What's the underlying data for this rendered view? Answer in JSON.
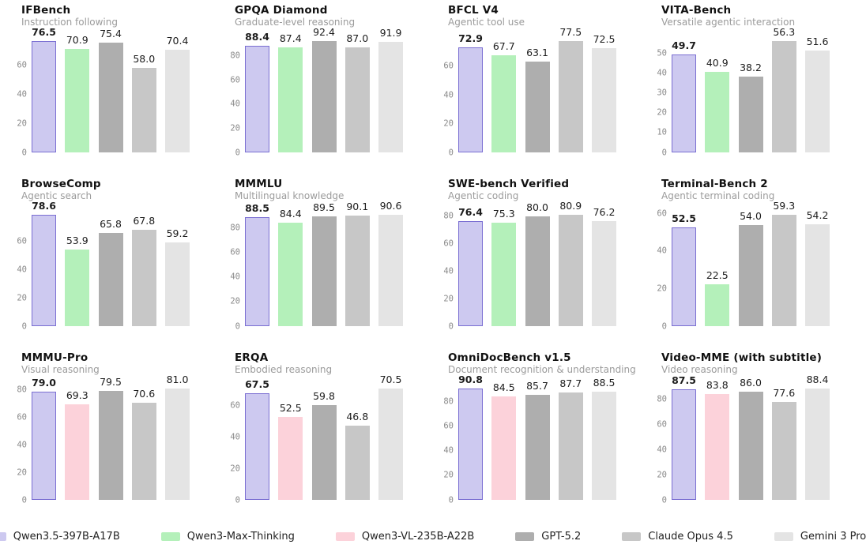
{
  "page": {
    "background": "#ffffff"
  },
  "palette": {
    "lavender": {
      "fill": "#cdc9f0",
      "border": "#7a6ed2"
    },
    "green": {
      "fill": "#b4f0ba",
      "border": ""
    },
    "pink": {
      "fill": "#fcd2da",
      "border": ""
    },
    "gray-dark": {
      "fill": "#aeaeae",
      "border": ""
    },
    "gray-mid": {
      "fill": "#c7c7c7",
      "border": ""
    },
    "gray-light": {
      "fill": "#e4e4e4",
      "border": ""
    }
  },
  "legend": {
    "items": [
      {
        "label": "Qwen3.5-397B-A17B",
        "color_key": "lavender"
      },
      {
        "label": "Qwen3-Max-Thinking",
        "color_key": "green"
      },
      {
        "label": "Qwen3-VL-235B-A22B",
        "color_key": "pink"
      },
      {
        "label": "GPT-5.2",
        "color_key": "gray-dark"
      },
      {
        "label": "Claude Opus 4.5",
        "color_key": "gray-mid"
      },
      {
        "label": "Gemini 3 Pro",
        "color_key": "gray-light"
      }
    ]
  },
  "chart_data": [
    {
      "type": "bar",
      "title": "IFBench",
      "subtitle": "Instruction following",
      "series": [
        "Qwen3.5-397B-A17B",
        "Qwen3-Max-Thinking",
        "GPT-5.2",
        "Claude Opus 4.5",
        "Gemini 3 Pro"
      ],
      "values": [
        76.5,
        70.9,
        75.4,
        58.0,
        70.4
      ],
      "labels": [
        "76.5",
        "70.9",
        "75.4",
        "58.0",
        "70.4"
      ],
      "yticks": [
        0,
        20,
        40,
        60
      ],
      "ylim": [
        0,
        80.3
      ],
      "colors": [
        "lavender",
        "green",
        "gray-dark",
        "gray-mid",
        "gray-light"
      ],
      "highlight_index": 0
    },
    {
      "type": "bar",
      "title": "GPQA Diamond",
      "subtitle": "Graduate-level reasoning",
      "series": [
        "Qwen3.5-397B-A17B",
        "Qwen3-Max-Thinking",
        "GPT-5.2",
        "Claude Opus 4.5",
        "Gemini 3 Pro"
      ],
      "values": [
        88.4,
        87.4,
        92.4,
        87.0,
        91.9
      ],
      "labels": [
        "88.4",
        "87.4",
        "92.4",
        "87.0",
        "91.9"
      ],
      "yticks": [
        0,
        20,
        40,
        60,
        80
      ],
      "ylim": [
        0,
        97.0
      ],
      "colors": [
        "lavender",
        "green",
        "gray-dark",
        "gray-mid",
        "gray-light"
      ],
      "highlight_index": 0
    },
    {
      "type": "bar",
      "title": "BFCL V4",
      "subtitle": "Agentic tool use",
      "series": [
        "Qwen3.5-397B-A17B",
        "Qwen3-Max-Thinking",
        "GPT-5.2",
        "Claude Opus 4.5",
        "Gemini 3 Pro"
      ],
      "values": [
        72.9,
        67.7,
        63.1,
        77.5,
        72.5
      ],
      "labels": [
        "72.9",
        "67.7",
        "63.1",
        "77.5",
        "72.5"
      ],
      "yticks": [
        0,
        20,
        40,
        60
      ],
      "ylim": [
        0,
        81.4
      ],
      "colors": [
        "lavender",
        "green",
        "gray-dark",
        "gray-mid",
        "gray-light"
      ],
      "highlight_index": 0
    },
    {
      "type": "bar",
      "title": "VITA-Bench",
      "subtitle": "Versatile agentic interaction",
      "series": [
        "Qwen3.5-397B-A17B",
        "Qwen3-Max-Thinking",
        "GPT-5.2",
        "Claude Opus 4.5",
        "Gemini 3 Pro"
      ],
      "values": [
        49.7,
        40.9,
        38.2,
        56.3,
        51.6
      ],
      "labels": [
        "49.7",
        "40.9",
        "38.2",
        "56.3",
        "51.6"
      ],
      "yticks": [
        0,
        10,
        20,
        30,
        40,
        50
      ],
      "ylim": [
        0,
        59.1
      ],
      "colors": [
        "lavender",
        "green",
        "gray-dark",
        "gray-mid",
        "gray-light"
      ],
      "highlight_index": 0
    },
    {
      "type": "bar",
      "title": "BrowseComp",
      "subtitle": "Agentic search",
      "series": [
        "Qwen3.5-397B-A17B",
        "Qwen3-Max-Thinking",
        "GPT-5.2",
        "Claude Opus 4.5",
        "Gemini 3 Pro"
      ],
      "values": [
        78.6,
        53.9,
        65.8,
        67.8,
        59.2
      ],
      "labels": [
        "78.6",
        "53.9",
        "65.8",
        "67.8",
        "59.2"
      ],
      "yticks": [
        0,
        20,
        40,
        60
      ],
      "ylim": [
        0,
        82.5
      ],
      "colors": [
        "lavender",
        "green",
        "gray-dark",
        "gray-mid",
        "gray-light"
      ],
      "highlight_index": 0
    },
    {
      "type": "bar",
      "title": "MMMLU",
      "subtitle": "Multilingual knowledge",
      "series": [
        "Qwen3.5-397B-A17B",
        "Qwen3-Max-Thinking",
        "GPT-5.2",
        "Claude Opus 4.5",
        "Gemini 3 Pro"
      ],
      "values": [
        88.5,
        84.4,
        89.5,
        90.1,
        90.6
      ],
      "labels": [
        "88.5",
        "84.4",
        "89.5",
        "90.1",
        "90.6"
      ],
      "yticks": [
        0,
        20,
        40,
        60,
        80
      ],
      "ylim": [
        0,
        95.1
      ],
      "colors": [
        "lavender",
        "green",
        "gray-dark",
        "gray-mid",
        "gray-light"
      ],
      "highlight_index": 0
    },
    {
      "type": "bar",
      "title": "SWE-bench Verified",
      "subtitle": "Agentic coding",
      "series": [
        "Qwen3.5-397B-A17B",
        "Qwen3-Max-Thinking",
        "GPT-5.2",
        "Claude Opus 4.5",
        "Gemini 3 Pro"
      ],
      "values": [
        76.4,
        75.3,
        80.0,
        80.9,
        76.2
      ],
      "labels": [
        "76.4",
        "75.3",
        "80.0",
        "80.9",
        "76.2"
      ],
      "yticks": [
        0,
        20,
        40,
        60,
        80
      ],
      "ylim": [
        0,
        84.9
      ],
      "colors": [
        "lavender",
        "green",
        "gray-dark",
        "gray-mid",
        "gray-light"
      ],
      "highlight_index": 0
    },
    {
      "type": "bar",
      "title": "Terminal-Bench 2",
      "subtitle": "Agentic terminal coding",
      "series": [
        "Qwen3.5-397B-A17B",
        "Qwen3-Max-Thinking",
        "GPT-5.2",
        "Claude Opus 4.5",
        "Gemini 3 Pro"
      ],
      "values": [
        52.5,
        22.5,
        54.0,
        59.3,
        54.2
      ],
      "labels": [
        "52.5",
        "22.5",
        "54.0",
        "59.3",
        "54.2"
      ],
      "yticks": [
        0,
        20,
        40,
        60
      ],
      "ylim": [
        0,
        62.3
      ],
      "colors": [
        "lavender",
        "green",
        "gray-dark",
        "gray-mid",
        "gray-light"
      ],
      "highlight_index": 0
    },
    {
      "type": "bar",
      "title": "MMMU-Pro",
      "subtitle": "Visual reasoning",
      "series": [
        "Qwen3.5-397B-A17B",
        "Qwen3-VL-235B-A22B",
        "GPT-5.2",
        "Claude Opus 4.5",
        "Gemini 3 Pro"
      ],
      "values": [
        79.0,
        69.3,
        79.5,
        70.6,
        81.0
      ],
      "labels": [
        "79.0",
        "69.3",
        "79.5",
        "70.6",
        "81.0"
      ],
      "yticks": [
        0,
        20,
        40,
        60,
        80
      ],
      "ylim": [
        0,
        85.1
      ],
      "colors": [
        "lavender",
        "pink",
        "gray-dark",
        "gray-mid",
        "gray-light"
      ],
      "highlight_index": 0
    },
    {
      "type": "bar",
      "title": "ERQA",
      "subtitle": "Embodied reasoning",
      "series": [
        "Qwen3.5-397B-A17B",
        "Qwen3-VL-235B-A22B",
        "GPT-5.2",
        "Claude Opus 4.5",
        "Gemini 3 Pro"
      ],
      "values": [
        67.5,
        52.5,
        59.8,
        46.8,
        70.5
      ],
      "labels": [
        "67.5",
        "52.5",
        "59.8",
        "46.8",
        "70.5"
      ],
      "yticks": [
        0,
        20,
        40,
        60
      ],
      "ylim": [
        0,
        74.0
      ],
      "colors": [
        "lavender",
        "pink",
        "gray-dark",
        "gray-mid",
        "gray-light"
      ],
      "highlight_index": 0
    },
    {
      "type": "bar",
      "title": "OmniDocBench v1.5",
      "subtitle": "Document recognition & understanding",
      "series": [
        "Qwen3.5-397B-A17B",
        "Qwen3-VL-235B-A22B",
        "GPT-5.2",
        "Claude Opus 4.5",
        "Gemini 3 Pro"
      ],
      "values": [
        90.8,
        84.5,
        85.7,
        87.7,
        88.5
      ],
      "labels": [
        "90.8",
        "84.5",
        "85.7",
        "87.7",
        "88.5"
      ],
      "yticks": [
        0,
        20,
        40,
        60,
        80
      ],
      "ylim": [
        0,
        95.3
      ],
      "colors": [
        "lavender",
        "pink",
        "gray-dark",
        "gray-mid",
        "gray-light"
      ],
      "highlight_index": 0
    },
    {
      "type": "bar",
      "title": "Video-MME (with subtitle)",
      "subtitle": "Video reasoning",
      "series": [
        "Qwen3.5-397B-A17B",
        "Qwen3-VL-235B-A22B",
        "GPT-5.2",
        "Claude Opus 4.5",
        "Gemini 3 Pro"
      ],
      "values": [
        87.5,
        83.8,
        86.0,
        77.6,
        88.4
      ],
      "labels": [
        "87.5",
        "83.8",
        "86.0",
        "77.6",
        "88.4"
      ],
      "yticks": [
        0,
        20,
        40,
        60,
        80
      ],
      "ylim": [
        0,
        92.8
      ],
      "colors": [
        "lavender",
        "pink",
        "gray-dark",
        "gray-mid",
        "gray-light"
      ],
      "highlight_index": 0
    }
  ]
}
